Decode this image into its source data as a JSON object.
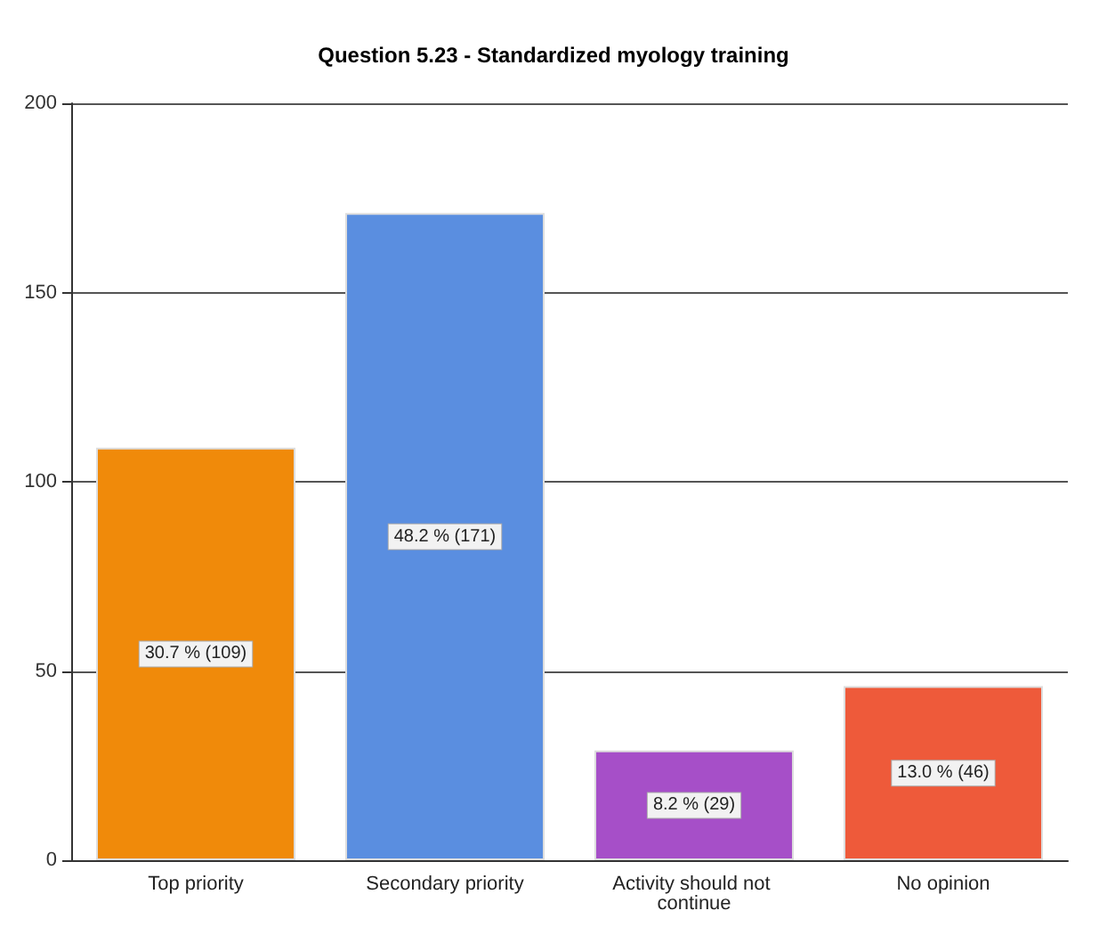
{
  "chart_data": {
    "type": "bar",
    "title": "Question 5.23 - Standardized myology training",
    "categories": [
      "Top priority",
      "Secondary priority",
      "Activity should not continue",
      "No opinion"
    ],
    "values": [
      109,
      171,
      29,
      46
    ],
    "colors": [
      "#f08a0a",
      "#5a8ee0",
      "#a64fc8",
      "#ee5a3a"
    ],
    "value_labels": [
      "30.7 % (109)",
      "48.2 % (171)",
      "8.2 % (29)",
      "13.0 % (46)"
    ],
    "ylim": [
      0,
      200
    ],
    "yticks": [
      0,
      50,
      100,
      150,
      200
    ],
    "grid": "y"
  }
}
